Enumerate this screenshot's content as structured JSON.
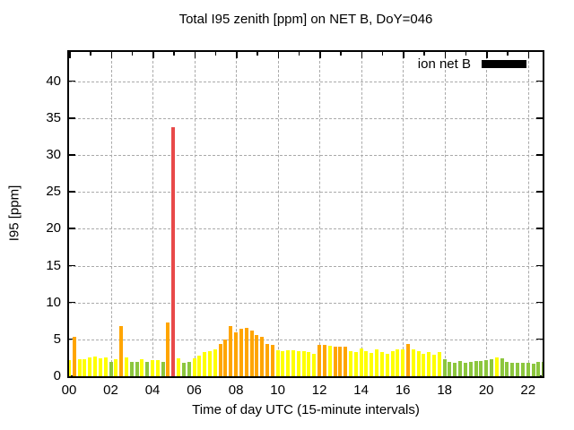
{
  "chart_data": {
    "type": "bar",
    "title": "Total I95 zenith [ppm] on NET B, DoY=046",
    "xlabel": "Time of day UTC (15-minute intervals)",
    "ylabel": "I95 [ppm]",
    "legend": {
      "label": "ion net B",
      "swatch_color": "#000000",
      "position": "top-right-inside"
    },
    "grid": true,
    "interval_minutes": 15,
    "ylim": [
      0,
      44
    ],
    "xlim_hours": [
      0,
      22.7
    ],
    "y_ticks": [
      0,
      5,
      10,
      15,
      20,
      25,
      30,
      35,
      40
    ],
    "x_tick_hours": [
      0,
      2,
      4,
      6,
      8,
      10,
      12,
      14,
      16,
      18,
      20,
      22
    ],
    "x_tick_labels": [
      "00",
      "02",
      "04",
      "06",
      "08",
      "10",
      "12",
      "14",
      "16",
      "18",
      "20",
      "22"
    ],
    "x_minor_tick_hours": [
      1,
      3,
      5,
      7,
      9,
      11,
      13,
      15,
      17,
      19,
      21
    ],
    "palette": {
      "y": "#ffff00",
      "o": "#ffa500",
      "g": "#8cc63e",
      "r": "#e84a4a"
    },
    "series": [
      {
        "name": "ion net B",
        "times": [
          "00:00",
          "00:15",
          "00:30",
          "00:45",
          "01:00",
          "01:15",
          "01:30",
          "01:45",
          "02:00",
          "02:15",
          "02:30",
          "02:45",
          "03:00",
          "03:15",
          "03:30",
          "03:45",
          "04:00",
          "04:15",
          "04:30",
          "04:45",
          "05:00",
          "05:15",
          "05:30",
          "05:45",
          "06:00",
          "06:15",
          "06:30",
          "06:45",
          "07:00",
          "07:15",
          "07:30",
          "07:45",
          "08:00",
          "08:15",
          "08:30",
          "08:45",
          "09:00",
          "09:15",
          "09:30",
          "09:45",
          "10:00",
          "10:15",
          "10:30",
          "10:45",
          "11:00",
          "11:15",
          "11:30",
          "11:45",
          "12:00",
          "12:15",
          "12:30",
          "12:45",
          "13:00",
          "13:15",
          "13:30",
          "13:45",
          "14:00",
          "14:15",
          "14:30",
          "14:45",
          "15:00",
          "15:15",
          "15:30",
          "15:45",
          "16:00",
          "16:15",
          "16:30",
          "16:45",
          "17:00",
          "17:15",
          "17:30",
          "17:45",
          "18:00",
          "18:15",
          "18:30",
          "18:45",
          "19:00",
          "19:15",
          "19:30",
          "19:45",
          "20:00",
          "20:15",
          "20:30",
          "20:45",
          "21:00",
          "21:15",
          "21:30",
          "21:45",
          "22:00",
          "22:15",
          "22:30",
          "22:45"
        ],
        "values": [
          2.2,
          5.3,
          2.3,
          2.3,
          2.5,
          2.7,
          2.4,
          2.6,
          1.9,
          2.3,
          6.8,
          2.5,
          1.9,
          1.9,
          2.3,
          2.0,
          2.2,
          2.2,
          1.9,
          7.3,
          33.8,
          2.4,
          1.8,
          2.0,
          2.4,
          2.8,
          3.3,
          3.4,
          3.6,
          4.4,
          5.0,
          6.8,
          6.0,
          6.5,
          6.6,
          6.2,
          5.6,
          5.4,
          4.4,
          4.2,
          3.5,
          3.4,
          3.5,
          3.5,
          3.4,
          3.4,
          3.3,
          3.0,
          4.2,
          4.2,
          4.1,
          4.0,
          4.0,
          4.0,
          3.4,
          3.3,
          3.8,
          3.4,
          3.2,
          3.7,
          3.3,
          3.0,
          3.4,
          3.6,
          3.7,
          4.4,
          3.6,
          3.4,
          3.1,
          3.3,
          2.9,
          3.3,
          2.3,
          1.9,
          1.8,
          2.1,
          1.8,
          2.0,
          2.1,
          2.1,
          2.2,
          2.3,
          2.5,
          2.4,
          1.9,
          1.8,
          1.8,
          1.8,
          1.8,
          1.7,
          2.0,
          2.0
        ],
        "colors": [
          "y",
          "o",
          "y",
          "y",
          "y",
          "y",
          "y",
          "y",
          "g",
          "y",
          "o",
          "y",
          "g",
          "g",
          "y",
          "g",
          "y",
          "y",
          "g",
          "o",
          "r",
          "y",
          "g",
          "g",
          "y",
          "y",
          "y",
          "y",
          "y",
          "o",
          "o",
          "o",
          "o",
          "o",
          "o",
          "o",
          "o",
          "o",
          "o",
          "o",
          "y",
          "y",
          "y",
          "y",
          "y",
          "y",
          "y",
          "y",
          "o",
          "o",
          "y",
          "o",
          "o",
          "o",
          "y",
          "y",
          "y",
          "y",
          "y",
          "y",
          "y",
          "y",
          "y",
          "y",
          "y",
          "o",
          "y",
          "y",
          "y",
          "y",
          "y",
          "y",
          "g",
          "g",
          "g",
          "g",
          "g",
          "g",
          "g",
          "g",
          "g",
          "g",
          "y",
          "g",
          "g",
          "g",
          "g",
          "g",
          "g",
          "g",
          "g",
          "g"
        ]
      }
    ]
  }
}
